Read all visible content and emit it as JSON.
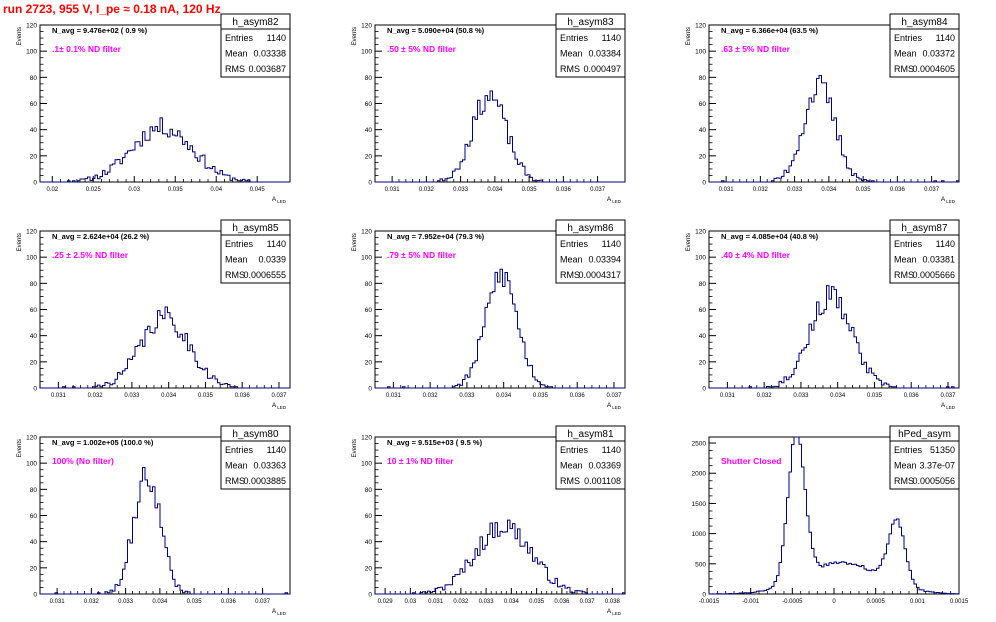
{
  "page": {
    "title": "run 2723,   955 V, I_pe ≈ 0.18 nA, 120 Hz"
  },
  "style": {
    "histogram_color": "#00007f",
    "annotation_color": "#ff00ff",
    "title_color": "#ff0000"
  },
  "stats_labels": {
    "entries": "Entries",
    "mean": "Mean",
    "rms": "RMS"
  },
  "chart_data": [
    {
      "type": "histogram",
      "id": "h_asym82",
      "stats": {
        "entries": "1140",
        "mean": "0.03338",
        "rms": "0.003687"
      },
      "navg_label": "N_avg = 9.476e+02 ( 0.9 %)",
      "filter_label": ".1± 0.1% ND filter",
      "ylabel": "Events",
      "xlabel": "A_LED",
      "xlim": [
        0.0185,
        0.049
      ],
      "ylim": [
        0,
        120
      ],
      "yticks": [
        0,
        20,
        40,
        60,
        80,
        100,
        120
      ],
      "xticks": [
        0.02,
        0.025,
        0.03,
        0.035,
        0.04,
        0.045
      ],
      "xtick_labels": [
        "0.02",
        "0.025",
        "0.03",
        "0.035",
        "0.04",
        "0.045"
      ],
      "mean": 0.03338,
      "sigma": 0.0037,
      "peak": 42,
      "seed": 11
    },
    {
      "type": "histogram",
      "id": "h_asym83",
      "stats": {
        "entries": "1140",
        "mean": "0.03384",
        "rms": "0.000497"
      },
      "navg_label": "N_avg = 5.090e+04 (50.8 %)",
      "filter_label": ".50 ± 5% ND filter",
      "ylabel": "Events",
      "xlabel": "A_LED",
      "xlim": [
        0.0305,
        0.0378
      ],
      "ylim": [
        0,
        120
      ],
      "yticks": [
        0,
        20,
        40,
        60,
        80,
        100,
        120
      ],
      "xticks": [
        0.031,
        0.032,
        0.033,
        0.034,
        0.035,
        0.036,
        0.037
      ],
      "xtick_labels": [
        "0.031",
        "0.032",
        "0.033",
        "0.034",
        "0.035",
        "0.036",
        "0.037"
      ],
      "mean": 0.03384,
      "sigma": 0.0005,
      "peak": 66,
      "seed": 23
    },
    {
      "type": "histogram",
      "id": "h_asym84",
      "stats": {
        "entries": "1140",
        "mean": "0.03372",
        "rms": "0.0004605"
      },
      "navg_label": "N_avg = 6.366e+04 (63.5 %)",
      "filter_label": ".63 ± 5% ND filter",
      "ylabel": "Events",
      "xlabel": "A_LED",
      "xlim": [
        0.0305,
        0.0378
      ],
      "ylim": [
        0,
        120
      ],
      "yticks": [
        0,
        20,
        40,
        60,
        80,
        100,
        120
      ],
      "xticks": [
        0.031,
        0.032,
        0.033,
        0.034,
        0.035,
        0.036,
        0.037
      ],
      "xtick_labels": [
        "0.031",
        "0.032",
        "0.033",
        "0.034",
        "0.035",
        "0.036",
        "0.037"
      ],
      "mean": 0.03372,
      "sigma": 0.00046,
      "peak": 73,
      "seed": 37
    },
    {
      "type": "histogram",
      "id": "h_asym85",
      "stats": {
        "entries": "1140",
        "mean": "0.0339",
        "rms": "0.0006555"
      },
      "navg_label": "N_avg = 2.624e+04 (26.2 %)",
      "filter_label": ".25 ± 2.5% ND filter",
      "ylabel": "Events",
      "xlabel": "A_LED",
      "xlim": [
        0.0305,
        0.0373
      ],
      "ylim": [
        0,
        120
      ],
      "yticks": [
        0,
        20,
        40,
        60,
        80,
        100,
        120
      ],
      "xticks": [
        0.031,
        0.032,
        0.033,
        0.034,
        0.035,
        0.036,
        0.037
      ],
      "xtick_labels": [
        "0.031",
        "0.032",
        "0.033",
        "0.034",
        "0.035",
        "0.036",
        "0.037"
      ],
      "mean": 0.0339,
      "sigma": 0.00066,
      "peak": 54,
      "seed": 41
    },
    {
      "type": "histogram",
      "id": "h_asym86",
      "stats": {
        "entries": "1140",
        "mean": "0.03394",
        "rms": "0.0004317"
      },
      "navg_label": "N_avg = 7.952e+04 (79.3 %)",
      "filter_label": ".79 ± 5% ND filter",
      "ylabel": "Events",
      "xlabel": "A_LED",
      "xlim": [
        0.0305,
        0.0373
      ],
      "ylim": [
        0,
        120
      ],
      "yticks": [
        0,
        20,
        40,
        60,
        80,
        100,
        120
      ],
      "xticks": [
        0.031,
        0.032,
        0.033,
        0.034,
        0.035,
        0.036,
        0.037
      ],
      "xtick_labels": [
        "0.031",
        "0.032",
        "0.033",
        "0.034",
        "0.035",
        "0.036",
        "0.037"
      ],
      "mean": 0.03394,
      "sigma": 0.00043,
      "peak": 87,
      "seed": 53
    },
    {
      "type": "histogram",
      "id": "h_asym87",
      "stats": {
        "entries": "1140",
        "mean": "0.03381",
        "rms": "0.0005666"
      },
      "navg_label": "N_avg = 4.085e+04 (40.8 %)",
      "filter_label": ".40 ± 4% ND filter",
      "ylabel": "Events",
      "xlabel": "A_LED",
      "xlim": [
        0.0305,
        0.0373
      ],
      "ylim": [
        0,
        120
      ],
      "yticks": [
        0,
        20,
        40,
        60,
        80,
        100,
        120
      ],
      "xticks": [
        0.031,
        0.032,
        0.033,
        0.034,
        0.035,
        0.036,
        0.037
      ],
      "xtick_labels": [
        "0.031",
        "0.032",
        "0.033",
        "0.034",
        "0.035",
        "0.036",
        "0.037"
      ],
      "mean": 0.03381,
      "sigma": 0.00057,
      "peak": 70,
      "seed": 67
    },
    {
      "type": "histogram",
      "id": "h_asym80",
      "stats": {
        "entries": "1140",
        "mean": "0.03363",
        "rms": "0.0003885"
      },
      "navg_label": "N_avg = 1.002e+05 (100.0 %)",
      "filter_label": "100% (No filter)",
      "ylabel": "Events",
      "xlabel": "A_LED",
      "xlim": [
        0.0305,
        0.0378
      ],
      "ylim": [
        0,
        120
      ],
      "yticks": [
        0,
        20,
        40,
        60,
        80,
        100,
        120
      ],
      "xticks": [
        0.031,
        0.032,
        0.033,
        0.034,
        0.035,
        0.036,
        0.037
      ],
      "xtick_labels": [
        "0.031",
        "0.032",
        "0.033",
        "0.034",
        "0.035",
        "0.036",
        "0.037"
      ],
      "mean": 0.03363,
      "sigma": 0.00039,
      "peak": 91,
      "seed": 79
    },
    {
      "type": "histogram",
      "id": "h_asym81",
      "stats": {
        "entries": "1140",
        "mean": "0.03369",
        "rms": "0.001108"
      },
      "navg_label": "N_avg = 9.515e+03 ( 9.5 %)",
      "filter_label": "10 ± 1% ND filter",
      "ylabel": "Events",
      "xlabel": "A_LED",
      "xlim": [
        0.0286,
        0.0385
      ],
      "ylim": [
        0,
        120
      ],
      "yticks": [
        0,
        20,
        40,
        60,
        80,
        100,
        120
      ],
      "xticks": [
        0.029,
        0.03,
        0.031,
        0.032,
        0.033,
        0.034,
        0.035,
        0.036,
        0.037,
        0.038
      ],
      "xtick_labels": [
        "0.029",
        "0.03",
        "0.031",
        "0.032",
        "0.033",
        "0.034",
        "0.035",
        "0.036",
        "0.037",
        "0.038"
      ],
      "mean": 0.03369,
      "sigma": 0.00111,
      "peak": 52,
      "seed": 97
    },
    {
      "type": "histogram",
      "id": "hPed_asym",
      "stats": {
        "entries": "51350",
        "mean": "3.37e-07",
        "rms": "0.0005056"
      },
      "navg_label": "",
      "filter_label": "Shutter Closed",
      "ylabel": "",
      "xlabel": "",
      "xlim": [
        -0.0015,
        0.0015
      ],
      "ylim": [
        0,
        2600
      ],
      "yticks": [
        0,
        500,
        1000,
        1500,
        2000,
        2500
      ],
      "xticks": [
        -0.0015,
        -0.001,
        -0.0005,
        0,
        0.0005,
        0.001,
        0.0015
      ],
      "xtick_labels": [
        "-0.0015",
        "-0.001",
        "-0.0005",
        "0",
        "0.0005",
        "0.001",
        "0.0015"
      ],
      "shape": "double",
      "peaks": [
        {
          "mean": -0.00045,
          "sigma": 0.0001,
          "height": 2450
        },
        {
          "mean": 0.00075,
          "sigma": 0.0001,
          "height": 1050
        },
        {
          "mean": 0.0001,
          "sigma": 0.00045,
          "height": 520
        }
      ],
      "seed": 113
    }
  ]
}
